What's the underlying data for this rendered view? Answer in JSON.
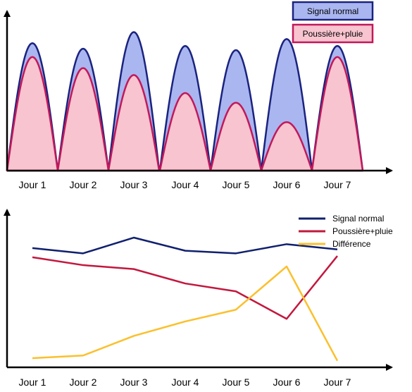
{
  "chart_data": [
    {
      "type": "area",
      "categories": [
        "Jour 1",
        "Jour 2",
        "Jour 3",
        "Jour 4",
        "Jour 5",
        "Jour 6",
        "Jour 7"
      ],
      "series": [
        {
          "name": "Signal normal",
          "values": [
            0.92,
            0.88,
            1.0,
            0.9,
            0.87,
            0.95,
            0.9
          ],
          "color": "#1a237e",
          "fill": "#aab6f0"
        },
        {
          "name": "Poussière+pluie",
          "values": [
            0.82,
            0.74,
            0.69,
            0.56,
            0.49,
            0.35,
            0.82
          ],
          "color": "#c2185b",
          "fill": "#f8c4cf"
        }
      ],
      "legend_position": "top-right",
      "ylim": [
        0,
        1.15
      ]
    },
    {
      "type": "line",
      "categories": [
        "Jour 1",
        "Jour 2",
        "Jour 3",
        "Jour 4",
        "Jour 5",
        "Jour 6",
        "Jour 7"
      ],
      "series": [
        {
          "name": "Signal normal",
          "values": [
            0.91,
            0.87,
            0.99,
            0.89,
            0.87,
            0.94,
            0.9
          ],
          "color": "#10206e"
        },
        {
          "name": "Poussière+pluie",
          "values": [
            0.84,
            0.78,
            0.75,
            0.64,
            0.58,
            0.37,
            0.85
          ],
          "color": "#c2183e"
        },
        {
          "name": "Différence",
          "values": [
            0.07,
            0.09,
            0.24,
            0.35,
            0.44,
            0.77,
            0.05
          ],
          "color": "#fbc02d"
        }
      ],
      "legend_position": "top-right",
      "ylim": [
        0,
        1.2
      ]
    }
  ]
}
